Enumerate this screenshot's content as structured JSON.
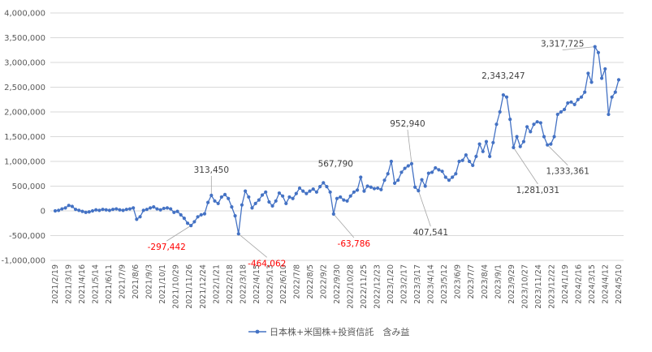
{
  "chart_data": {
    "type": "line",
    "title": "",
    "xlabel": "",
    "ylabel": "",
    "ylim": [
      -1000000,
      4000000
    ],
    "ytick_values": [
      -1000000,
      -500000,
      0,
      500000,
      1000000,
      1500000,
      2000000,
      2500000,
      3000000,
      3500000,
      4000000
    ],
    "ytick_labels": [
      "-1,000,000",
      "-500,000",
      "0",
      "500,000",
      "1,000,000",
      "1,500,000",
      "2,000,000",
      "2,500,000",
      "3,000,000",
      "3,500,000",
      "4,000,000"
    ],
    "grid": "horizontal",
    "legend_position": "bottom",
    "series_color": "#4472c4",
    "x_tick_labels": [
      "2021/2/19",
      "2021/3/19",
      "2021/4/16",
      "2021/5/14",
      "2021/6/11",
      "2021/7/9",
      "2021/8/6",
      "2021/9/3",
      "2021/10/1",
      "2021/10/29",
      "2021/11/26",
      "2021/12/24",
      "2022/1/21",
      "2022/2/18",
      "2022/3/18",
      "2022/4/15",
      "2022/5/13",
      "2022/6/10",
      "2022/7/8",
      "2022/8/5",
      "2022/9/2",
      "2022/9/30",
      "2022/10/28",
      "2022/11/25",
      "2022/12/23",
      "2023/1/20",
      "2023/2/17",
      "2023/3/17",
      "2023/4/14",
      "2023/5/12",
      "2023/6/9",
      "2023/7/7",
      "2023/8/4",
      "2023/9/1",
      "2023/9/29",
      "2023/10/27",
      "2023/11/24",
      "2023/12/22",
      "2024/1/19",
      "2024/2/16",
      "2024/3/15",
      "2024/4/12",
      "2024/5/10"
    ],
    "series": [
      {
        "name": "日本株+米国株+投資信託　含み益",
        "values": [
          0,
          10000,
          40000,
          60000,
          110000,
          90000,
          30000,
          10000,
          -10000,
          -30000,
          -20000,
          0,
          20000,
          10000,
          30000,
          20000,
          10000,
          30000,
          40000,
          20000,
          10000,
          30000,
          40000,
          60000,
          -170000,
          -120000,
          10000,
          30000,
          60000,
          80000,
          40000,
          20000,
          50000,
          60000,
          40000,
          -30000,
          -10000,
          -80000,
          -150000,
          -250000,
          -297442,
          -220000,
          -120000,
          -80000,
          -60000,
          170000,
          313450,
          200000,
          150000,
          280000,
          330000,
          250000,
          80000,
          -100000,
          -464062,
          120000,
          400000,
          280000,
          60000,
          150000,
          220000,
          320000,
          380000,
          180000,
          100000,
          200000,
          360000,
          300000,
          150000,
          280000,
          250000,
          350000,
          460000,
          400000,
          350000,
          400000,
          440000,
          380000,
          490000,
          567790,
          490000,
          380000,
          -63786,
          250000,
          280000,
          220000,
          200000,
          300000,
          380000,
          420000,
          680000,
          400000,
          500000,
          480000,
          450000,
          460000,
          430000,
          620000,
          750000,
          1000000,
          560000,
          620000,
          780000,
          860000,
          910000,
          952940,
          480000,
          407541,
          630000,
          500000,
          760000,
          780000,
          870000,
          830000,
          800000,
          680000,
          620000,
          680000,
          750000,
          1000000,
          1020000,
          1130000,
          1000000,
          920000,
          1100000,
          1350000,
          1200000,
          1400000,
          1100000,
          1380000,
          1750000,
          2000000,
          2343247,
          2300000,
          1850000,
          1281031,
          1500000,
          1300000,
          1400000,
          1700000,
          1600000,
          1750000,
          1800000,
          1780000,
          1500000,
          1333361,
          1350000,
          1500000,
          1950000,
          2000000,
          2050000,
          2180000,
          2200000,
          2150000,
          2250000,
          2300000,
          2400000,
          2780000,
          2600000,
          3317725,
          3200000,
          2680000,
          2870000,
          1950000,
          2300000,
          2400000,
          2650000
        ]
      }
    ],
    "annotations": [
      {
        "index": 40,
        "text": "-297,442",
        "color": "#ff0000"
      },
      {
        "index": 46,
        "text": "313,450",
        "color": "#404040"
      },
      {
        "index": 54,
        "text": "-464,062",
        "color": "#ff0000"
      },
      {
        "index": 79,
        "text": "567,790",
        "color": "#404040"
      },
      {
        "index": 82,
        "text": "-63,786",
        "color": "#ff0000"
      },
      {
        "index": 105,
        "text": "952,940",
        "color": "#404040"
      },
      {
        "index": 107,
        "text": "407,541",
        "color": "#404040"
      },
      {
        "index": 132,
        "text": "2,343,247",
        "color": "#404040"
      },
      {
        "index": 135,
        "text": "1,281,031",
        "color": "#404040"
      },
      {
        "index": 145,
        "text": "1,333,361",
        "color": "#404040"
      },
      {
        "index": 159,
        "text": "3,317,725",
        "color": "#404040"
      }
    ]
  }
}
